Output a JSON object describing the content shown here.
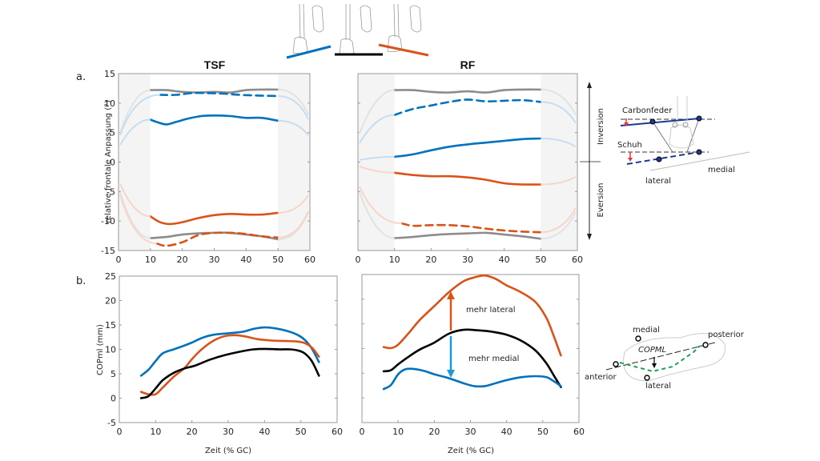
{
  "colors": {
    "blue": "#0072bd",
    "orange": "#d95319",
    "gray": "#8c8c8c",
    "black": "#000000",
    "light_blue": "#c6def0",
    "light_orange": "#f6d6c8",
    "light_gray": "#e2e2e2",
    "shade": "#f4f4f4"
  },
  "panel_labels": {
    "a": "a.",
    "b": "b."
  },
  "right_axis": {
    "inversion": "Inversion",
    "eversion": "Eversion"
  },
  "diagram_top": {
    "carbon": "Carbonfeder",
    "shoe": "Schuh",
    "lateral": "lateral",
    "medial": "medial"
  },
  "diagram_bottom": {
    "medial": "medial",
    "posterior": "posterior",
    "anterior": "anterior",
    "lateral": "lateral",
    "cop": "COPML"
  },
  "annotations": {
    "more_lateral": "mehr lateral",
    "more_medial": "mehr medial"
  },
  "chart_data": [
    {
      "type": "line",
      "id": "tsf-angle",
      "title": "TSF",
      "xlabel": "",
      "ylabel": "relative frontale Anpassung (°)",
      "xlim": [
        0,
        60
      ],
      "ylim": [
        -15,
        15
      ],
      "xticks": [
        0,
        10,
        20,
        30,
        40,
        50,
        60
      ],
      "yticks": [
        -15,
        -10,
        -5,
        0,
        5,
        10,
        15
      ],
      "shaded_regions": [
        [
          0,
          10
        ],
        [
          50,
          60
        ]
      ],
      "series": [
        {
          "name": "carbon-upper-gray",
          "color": "gray",
          "dash": false,
          "x": [
            10,
            15,
            20,
            25,
            30,
            35,
            40,
            45,
            50
          ],
          "y": [
            12.2,
            12.2,
            11.9,
            11.8,
            11.9,
            11.8,
            12.2,
            12.3,
            12.3
          ]
        },
        {
          "name": "shoe-inversion-blue-dashed",
          "color": "blue",
          "dash": true,
          "x": [
            13,
            18,
            23,
            28,
            33,
            38,
            43,
            50
          ],
          "y": [
            11.4,
            11.4,
            11.7,
            11.7,
            11.6,
            11.4,
            11.3,
            11.2
          ]
        },
        {
          "name": "carbon-inversion-blue",
          "color": "blue",
          "dash": false,
          "x": [
            10,
            12,
            15,
            18,
            22,
            26,
            30,
            35,
            40,
            45,
            50
          ],
          "y": [
            7.2,
            6.8,
            6.4,
            6.8,
            7.4,
            7.8,
            7.9,
            7.8,
            7.5,
            7.5,
            7.0
          ]
        },
        {
          "name": "carbon-eversion-orange",
          "color": "orange",
          "dash": false,
          "x": [
            10,
            13,
            16,
            20,
            25,
            30,
            35,
            40,
            45,
            50
          ],
          "y": [
            -9.2,
            -10.2,
            -10.5,
            -10.2,
            -9.5,
            -9.0,
            -8.8,
            -8.9,
            -8.9,
            -8.6
          ]
        },
        {
          "name": "carbon-lower-gray",
          "color": "gray",
          "dash": false,
          "x": [
            10,
            15,
            20,
            25,
            30,
            35,
            40,
            45,
            50
          ],
          "y": [
            -12.9,
            -12.7,
            -12.3,
            -12.1,
            -12.0,
            -12.0,
            -12.3,
            -12.6,
            -13.1
          ]
        },
        {
          "name": "shoe-eversion-orange-dashed",
          "color": "orange",
          "dash": true,
          "x": [
            12,
            15,
            20,
            25,
            30,
            35,
            40,
            45,
            50
          ],
          "y": [
            -13.8,
            -14.2,
            -13.6,
            -12.4,
            -12.0,
            -12.0,
            -12.2,
            -12.6,
            -12.8
          ]
        }
      ]
    },
    {
      "type": "line",
      "id": "rf-angle",
      "title": "RF",
      "xlim": [
        0,
        60
      ],
      "ylim": [
        -15,
        15
      ],
      "xticks": [
        0,
        10,
        20,
        30,
        40,
        50,
        60
      ],
      "shaded_regions": [
        [
          0,
          10
        ],
        [
          50,
          60
        ]
      ],
      "series": [
        {
          "name": "carbon-upper-gray",
          "color": "gray",
          "dash": false,
          "x": [
            10,
            15,
            20,
            25,
            30,
            35,
            40,
            45,
            50
          ],
          "y": [
            12.2,
            12.2,
            11.9,
            11.8,
            12.0,
            11.8,
            12.2,
            12.3,
            12.3
          ]
        },
        {
          "name": "shoe-inversion-blue-dashed",
          "color": "blue",
          "dash": true,
          "x": [
            10,
            15,
            20,
            25,
            30,
            35,
            40,
            45,
            50
          ],
          "y": [
            8.0,
            9.0,
            9.6,
            10.2,
            10.6,
            10.3,
            10.4,
            10.5,
            10.2
          ]
        },
        {
          "name": "carbon-inversion-blue",
          "color": "blue",
          "dash": false,
          "x": [
            10,
            15,
            20,
            25,
            30,
            35,
            40,
            45,
            50
          ],
          "y": [
            0.9,
            1.3,
            2.0,
            2.6,
            3.0,
            3.3,
            3.6,
            3.9,
            4.0
          ]
        },
        {
          "name": "carbon-eversion-orange",
          "color": "orange",
          "dash": false,
          "x": [
            10,
            15,
            20,
            25,
            30,
            35,
            40,
            45,
            50
          ],
          "y": [
            -1.8,
            -2.2,
            -2.4,
            -2.4,
            -2.6,
            -3.0,
            -3.6,
            -3.8,
            -3.8
          ]
        },
        {
          "name": "shoe-eversion-orange-dashed",
          "color": "orange",
          "dash": true,
          "x": [
            12,
            15,
            20,
            25,
            30,
            35,
            40,
            45,
            50
          ],
          "y": [
            -10.4,
            -10.8,
            -10.7,
            -10.7,
            -10.9,
            -11.3,
            -11.6,
            -11.8,
            -11.9
          ]
        },
        {
          "name": "carbon-lower-gray",
          "color": "gray",
          "dash": false,
          "x": [
            10,
            15,
            20,
            25,
            30,
            35,
            40,
            45,
            50
          ],
          "y": [
            -12.9,
            -12.7,
            -12.4,
            -12.2,
            -12.1,
            -12.0,
            -12.3,
            -12.6,
            -13.0
          ]
        }
      ]
    },
    {
      "type": "line",
      "id": "tsf-cop",
      "xlabel": "Zeit (% GC)",
      "ylabel": "COPml (mm)",
      "xlim": [
        0,
        60
      ],
      "ylim": [
        -5,
        25
      ],
      "xticks": [
        0,
        10,
        20,
        30,
        40,
        50,
        60
      ],
      "yticks": [
        -5,
        0,
        5,
        10,
        15,
        20,
        25
      ],
      "series": [
        {
          "name": "blue",
          "color": "blue",
          "x": [
            6,
            8,
            10,
            12,
            15,
            18,
            20,
            23,
            26,
            30,
            34,
            37,
            40,
            43,
            46,
            49,
            51,
            53,
            55
          ],
          "y": [
            4.6,
            5.8,
            7.6,
            9.2,
            10.0,
            10.8,
            11.4,
            12.4,
            13.0,
            13.3,
            13.6,
            14.2,
            14.5,
            14.3,
            13.8,
            13.0,
            12.0,
            10.2,
            7.4
          ]
        },
        {
          "name": "orange",
          "color": "orange",
          "x": [
            6,
            8,
            10,
            12,
            15,
            18,
            20,
            23,
            26,
            29,
            32,
            35,
            38,
            42,
            46,
            49,
            51,
            53,
            55
          ],
          "y": [
            1.3,
            0.8,
            0.8,
            2.2,
            4.4,
            6.2,
            8.0,
            10.2,
            11.8,
            12.7,
            12.9,
            12.6,
            12.1,
            11.8,
            11.7,
            11.6,
            11.3,
            10.4,
            8.5
          ]
        },
        {
          "name": "black",
          "color": "black",
          "x": [
            6,
            8,
            10,
            12,
            15,
            18,
            21,
            25,
            29,
            33,
            37,
            40,
            44,
            47,
            49,
            51,
            53,
            55
          ],
          "y": [
            0.0,
            0.4,
            2.0,
            3.7,
            5.2,
            6.1,
            6.7,
            7.9,
            8.8,
            9.5,
            10.0,
            10.1,
            10.0,
            10.0,
            9.8,
            9.2,
            7.6,
            4.6
          ]
        }
      ]
    },
    {
      "type": "line",
      "id": "rf-cop",
      "xlabel": "Zeit (% GC)",
      "xlim": [
        0,
        60
      ],
      "ylim": [
        -5,
        25
      ],
      "xticks": [
        0,
        10,
        20,
        30,
        40,
        50,
        60
      ],
      "series": [
        {
          "name": "orange",
          "color": "orange",
          "x": [
            6,
            8,
            10,
            13,
            16,
            20,
            24,
            28,
            31,
            34,
            37,
            40,
            44,
            48,
            51,
            53,
            55
          ],
          "y": [
            10.3,
            10.1,
            10.8,
            13.2,
            15.8,
            18.6,
            21.4,
            23.6,
            24.4,
            24.8,
            24.1,
            22.8,
            21.4,
            19.4,
            16.2,
            12.6,
            8.6
          ]
        },
        {
          "name": "black",
          "color": "black",
          "x": [
            6,
            8,
            10,
            13,
            16,
            20,
            24,
            28,
            32,
            36,
            40,
            44,
            48,
            51,
            53,
            55
          ],
          "y": [
            5.4,
            5.6,
            6.8,
            8.4,
            9.8,
            11.2,
            13.0,
            13.8,
            13.7,
            13.4,
            12.8,
            11.6,
            9.6,
            7.0,
            4.6,
            2.2
          ]
        },
        {
          "name": "blue",
          "color": "blue",
          "x": [
            6,
            8,
            10,
            12,
            14,
            17,
            20,
            24,
            28,
            31,
            34,
            37,
            40,
            44,
            48,
            51,
            53,
            55
          ],
          "y": [
            1.8,
            2.6,
            4.8,
            5.8,
            5.9,
            5.5,
            4.8,
            4.0,
            3.0,
            2.4,
            2.4,
            3.0,
            3.6,
            4.2,
            4.4,
            4.2,
            3.4,
            2.4
          ]
        }
      ]
    }
  ]
}
